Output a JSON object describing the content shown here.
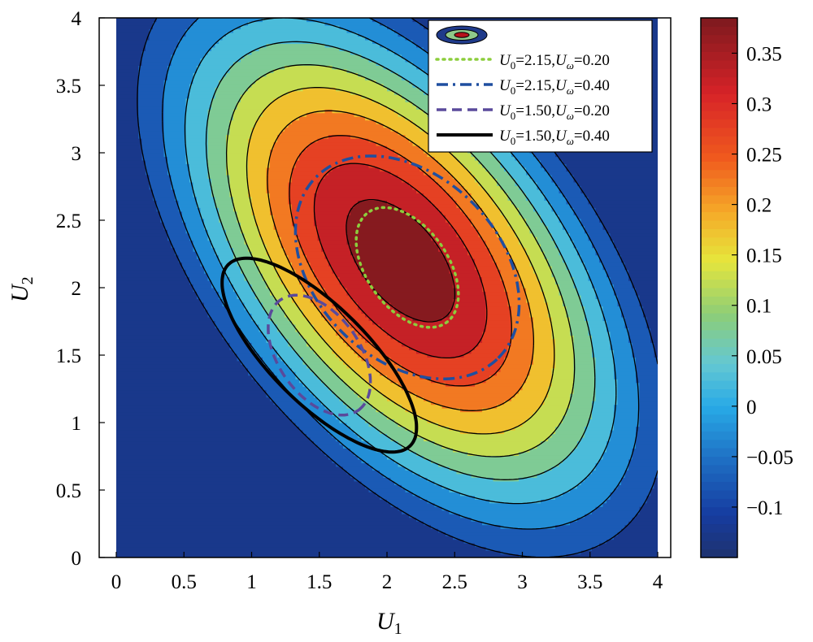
{
  "chart_data": {
    "type": "contour",
    "xlabel": "U",
    "xlabel_sub": "1",
    "ylabel": "U",
    "ylabel_sub": "2",
    "xlim": [
      0,
      4
    ],
    "ylim": [
      0,
      4
    ],
    "xticks": [
      "0",
      "0.5",
      "1",
      "1.5",
      "2",
      "2.5",
      "3",
      "3.5",
      "4"
    ],
    "yticks": [
      "0",
      "0.5",
      "1",
      "1.5",
      "2",
      "2.5",
      "3",
      "3.5",
      "4"
    ],
    "contour_levels": [
      -0.1,
      -0.05,
      0,
      0.05,
      0.1,
      0.15,
      0.2,
      0.25,
      0.3,
      0.35
    ],
    "colorbar": {
      "range": [
        -0.15,
        0.385
      ],
      "ticks": [
        "0.35",
        "0.3",
        "0.25",
        "0.2",
        "0.15",
        "0.1",
        "0.05",
        "0",
        "−0.05",
        "−0.1"
      ],
      "tick_values": [
        0.35,
        0.3,
        0.25,
        0.2,
        0.15,
        0.1,
        0.05,
        0,
        -0.05,
        -0.1
      ]
    },
    "field_peak": {
      "u1": 2.1,
      "u2": 2.2,
      "value": 0.385
    },
    "legend_placement": "top-right",
    "series": [
      {
        "label_prefix": "U",
        "label_sub": "0",
        "label_mid": "=2.15,U",
        "label_sub2": "ω",
        "label_end": "=0.20",
        "style": "dotted",
        "color": "#8ccd3c",
        "center": [
          2.15,
          2.15
        ],
        "semi_axes": [
          0.5,
          0.3
        ],
        "angle_deg": -55
      },
      {
        "label_prefix": "U",
        "label_sub": "0",
        "label_mid": "=2.15,U",
        "label_sub2": "ω",
        "label_end": "=0.40",
        "style": "dashdot",
        "color": "#1f4fa0",
        "center": [
          2.15,
          2.15
        ],
        "semi_axes": [
          0.95,
          0.68
        ],
        "angle_deg": -45
      },
      {
        "label_prefix": "U",
        "label_sub": "0",
        "label_mid": "=1.50,U",
        "label_sub2": "ω",
        "label_end": "=0.20",
        "style": "dashed",
        "color": "#5a4a9c",
        "center": [
          1.5,
          1.5
        ],
        "semi_axes": [
          0.5,
          0.3
        ],
        "angle_deg": -55
      },
      {
        "label_prefix": "U",
        "label_sub": "0",
        "label_mid": "=1.50,U",
        "label_sub2": "ω",
        "label_end": "=0.40",
        "style": "solid",
        "color": "#000000",
        "center": [
          1.5,
          1.5
        ],
        "semi_axes": [
          0.95,
          0.36
        ],
        "angle_deg": -45
      }
    ]
  }
}
